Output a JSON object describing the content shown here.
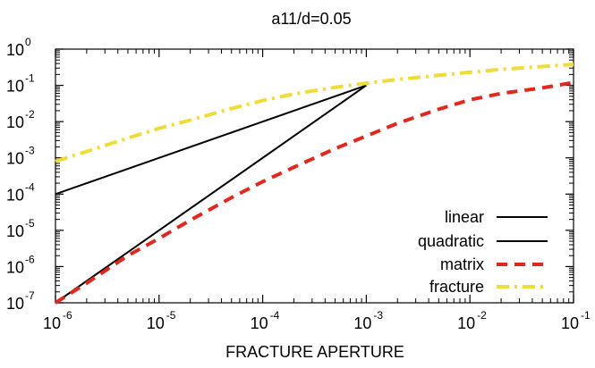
{
  "chart_data": {
    "type": "line",
    "title": "a11/d=0.05",
    "xlabel": "FRACTURE APERTURE",
    "ylabel": "",
    "x_scale": "log",
    "y_scale": "log",
    "xlim": [
      1e-06,
      0.1
    ],
    "ylim": [
      1e-07,
      1
    ],
    "grid": false,
    "legend_position": "bottom-right",
    "x_ticks": [
      {
        "base": "10",
        "exp": "-6",
        "value": 1e-06
      },
      {
        "base": "10",
        "exp": "-5",
        "value": 1e-05
      },
      {
        "base": "10",
        "exp": "-4",
        "value": 0.0001
      },
      {
        "base": "10",
        "exp": "-3",
        "value": 0.001
      },
      {
        "base": "10",
        "exp": "-2",
        "value": 0.01
      },
      {
        "base": "10",
        "exp": "-1",
        "value": 0.1
      }
    ],
    "y_ticks": [
      {
        "base": "10",
        "exp": "0",
        "value": 1
      },
      {
        "base": "10",
        "exp": "-1",
        "value": 0.1
      },
      {
        "base": "10",
        "exp": "-2",
        "value": 0.01
      },
      {
        "base": "10",
        "exp": "-3",
        "value": 0.001
      },
      {
        "base": "10",
        "exp": "-4",
        "value": 0.0001
      },
      {
        "base": "10",
        "exp": "-5",
        "value": 1e-05
      },
      {
        "base": "10",
        "exp": "-6",
        "value": 1e-06
      },
      {
        "base": "10",
        "exp": "-7",
        "value": 1e-07
      }
    ],
    "series": [
      {
        "name": "linear",
        "color": "#000000",
        "dash": "solid",
        "x": [
          1e-06,
          0.001
        ],
        "y": [
          0.0001,
          0.1
        ]
      },
      {
        "name": "quadratic",
        "color": "#000000",
        "dash": "solid",
        "x": [
          1e-06,
          0.001
        ],
        "y": [
          1e-07,
          0.1
        ]
      },
      {
        "name": "matrix",
        "color": "#e0281e",
        "dash": "dashed",
        "x": [
          1e-06,
          2e-06,
          5e-06,
          1e-05,
          2e-05,
          5e-05,
          0.0001,
          0.0002,
          0.0005,
          0.001,
          0.002,
          0.005,
          0.01,
          0.02,
          0.05,
          0.1
        ],
        "y": [
          1e-07,
          3.5e-07,
          2e-06,
          6e-06,
          1.9e-05,
          8e-05,
          0.00022,
          0.00055,
          0.0018,
          0.004,
          0.009,
          0.022,
          0.04,
          0.06,
          0.085,
          0.12
        ]
      },
      {
        "name": "fracture",
        "color": "#eedc3a",
        "dash": "dashdot",
        "x": [
          1e-06,
          2e-06,
          5e-06,
          1e-05,
          2e-05,
          5e-05,
          0.0001,
          0.0002,
          0.0005,
          0.001,
          0.002,
          0.005,
          0.01,
          0.02,
          0.05,
          0.1
        ],
        "y": [
          0.0008,
          0.0015,
          0.0035,
          0.0065,
          0.011,
          0.023,
          0.038,
          0.058,
          0.088,
          0.115,
          0.145,
          0.19,
          0.23,
          0.275,
          0.33,
          0.38
        ]
      }
    ]
  }
}
